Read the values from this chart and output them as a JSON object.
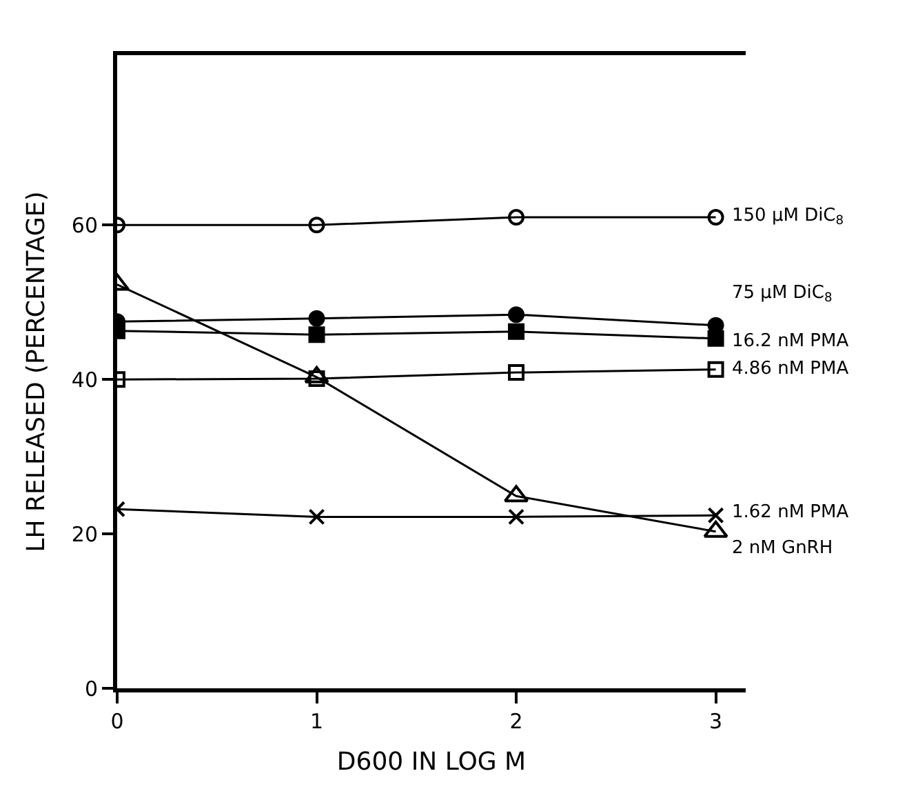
{
  "chart_data": {
    "type": "line",
    "xlabel": "D600 IN LOG M",
    "ylabel": "LH RELEASED (PERCENTAGE)",
    "x": [
      0,
      1,
      2,
      3
    ],
    "xlim": [
      0,
      3.15
    ],
    "xticks": [
      0,
      1,
      2,
      3
    ],
    "ylim": [
      0,
      82
    ],
    "yticks": [
      0,
      20,
      40,
      60
    ],
    "legend": false,
    "line_style": "solid",
    "series": [
      {
        "name": "150 µM DiC$_{8}$",
        "color": "#000000",
        "marker": "circle",
        "values": [
          60,
          60,
          61,
          61
        ]
      },
      {
        "name": "75 µM DiC$_{8}$",
        "color": "#000000",
        "marker": "circle",
        "values": [
          47.5,
          47.9,
          48.4,
          47.0
        ]
      },
      {
        "name": "16.2 nM PMA",
        "color": "#000000",
        "marker": "square",
        "values": [
          46.3,
          45.8,
          46.2,
          45.3
        ]
      },
      {
        "name": "4.86 nM PMA",
        "color": "#000000",
        "marker": "square",
        "values": [
          40,
          40.1,
          40.9,
          41.3
        ]
      },
      {
        "name": "1.62 nM PMA",
        "color": "#000000",
        "marker": "cross",
        "values": [
          23.2,
          22.2,
          22.2,
          22.4
        ]
      },
      {
        "name": "2 nM GnRH",
        "color": "#000000",
        "marker": "triangle",
        "values": [
          52.3,
          40.3,
          24.9,
          20.3
        ]
      }
    ]
  }
}
